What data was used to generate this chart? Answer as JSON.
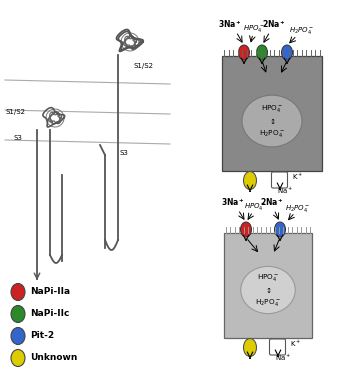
{
  "fig_width": 3.59,
  "fig_height": 3.79,
  "dpi": 100,
  "bg_color": "#ffffff",
  "legend_items": [
    {
      "label": "NaPi-IIa",
      "color": "#cc2222"
    },
    {
      "label": "NaPi-IIc",
      "color": "#2a8a2a"
    },
    {
      "label": "Pit-2",
      "color": "#3366cc"
    },
    {
      "label": "Unknown",
      "color": "#ddcc00"
    }
  ],
  "top_cell_bg": "#888888",
  "bottom_cell_bg": "#bbbbbb",
  "top_ellipse_bg": "#aaaaaa",
  "bot_ellipse_bg": "#d0d0d0",
  "cell_interior_top": "HPO₄⁻\n↕\nH₂PO₄⁻",
  "cell_interior_bottom": "HPO₄⁻\n↕\nH₂PO₄⁻",
  "tubule_color": "#555555",
  "medulla_line_color": "#aaaaaa"
}
